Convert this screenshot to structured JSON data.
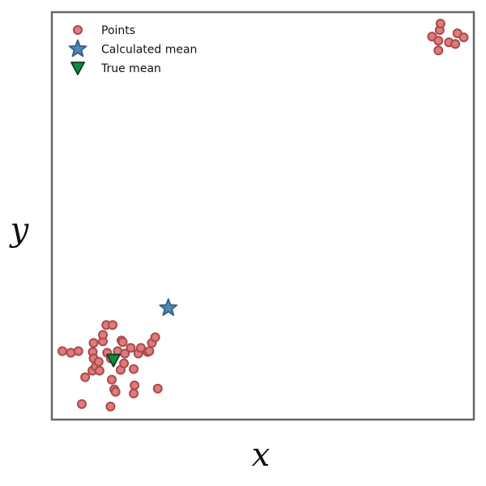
{
  "chart_data": {
    "type": "scatter",
    "xlabel": "x",
    "ylabel": "y",
    "xlim": [
      0,
      100
    ],
    "ylim": [
      0,
      100
    ],
    "grid": false,
    "ticks_visible": false,
    "legend": {
      "placement": "top-left",
      "entries": [
        {
          "label": "Points",
          "marker": "circle"
        },
        {
          "label": "Calculated mean",
          "marker": "star"
        },
        {
          "label": "True mean",
          "marker": "triangle-down"
        }
      ]
    },
    "series": [
      {
        "name": "Points",
        "marker": "circle",
        "color": "#e07b7b",
        "edgecolor": "#a94a4a",
        "points": [
          [
            2.5,
            16.8
          ],
          [
            4.5,
            16.4
          ],
          [
            6.3,
            16.8
          ],
          [
            7.1,
            3.8
          ],
          [
            7.9,
            10.4
          ],
          [
            9.6,
            12.0
          ],
          [
            9.9,
            18.8
          ],
          [
            9.7,
            16.6
          ],
          [
            9.9,
            15.0
          ],
          [
            10.4,
            13.0
          ],
          [
            11.3,
            12.0
          ],
          [
            11.1,
            14.2
          ],
          [
            12.1,
            19.2
          ],
          [
            12.1,
            20.8
          ],
          [
            13.1,
            16.4
          ],
          [
            12.9,
            23.2
          ],
          [
            14.4,
            23.2
          ],
          [
            14.0,
            15.0
          ],
          [
            14.2,
            9.8
          ],
          [
            14.8,
            7.4
          ],
          [
            13.9,
            3.2
          ],
          [
            15.1,
            6.8
          ],
          [
            15.6,
            16.8
          ],
          [
            16.3,
            12.2
          ],
          [
            16.5,
            19.4
          ],
          [
            16.8,
            19.0
          ],
          [
            17.3,
            16.2
          ],
          [
            17.1,
            13.8
          ],
          [
            18.7,
            17.6
          ],
          [
            19.4,
            12.4
          ],
          [
            19.6,
            8.4
          ],
          [
            19.4,
            6.4
          ],
          [
            20.5,
            16.2
          ],
          [
            21.1,
            17.6
          ],
          [
            22.7,
            16.6
          ],
          [
            23.1,
            16.8
          ],
          [
            23.7,
            18.8
          ],
          [
            24.5,
            20.2
          ],
          [
            25.1,
            7.6
          ],
          [
            90.1,
            94.0
          ],
          [
            91.6,
            93.0
          ],
          [
            91.6,
            90.6
          ],
          [
            91.9,
            95.6
          ],
          [
            92.1,
            97.2
          ],
          [
            94.1,
            92.6
          ],
          [
            95.6,
            92.2
          ],
          [
            96.1,
            94.8
          ],
          [
            97.6,
            93.8
          ]
        ]
      },
      {
        "name": "Calculated mean",
        "marker": "star",
        "color": "#4f86b8",
        "points": [
          [
            27.6,
            27.4
          ]
        ]
      },
      {
        "name": "True mean",
        "marker": "triangle-down",
        "color": "#0f8a43",
        "points": [
          [
            14.6,
            14.6
          ]
        ]
      }
    ]
  }
}
